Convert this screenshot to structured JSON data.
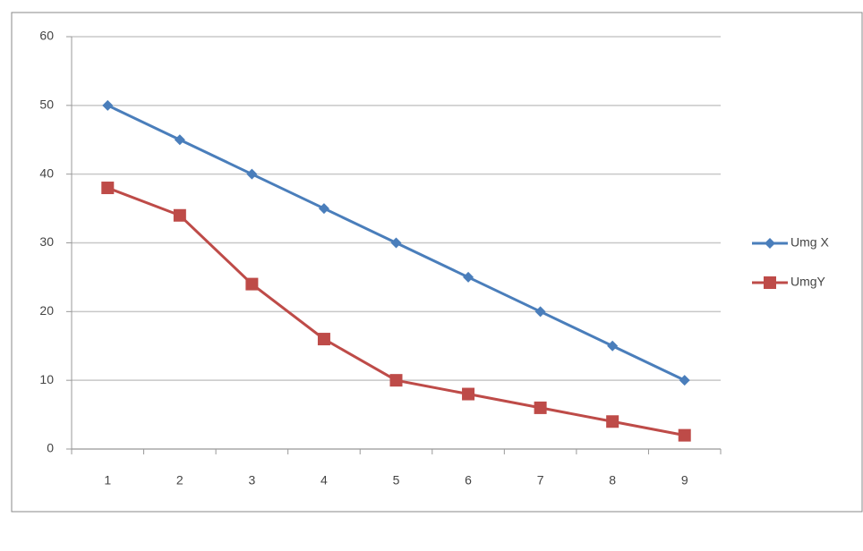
{
  "chart_data": {
    "type": "line",
    "categories": [
      "1",
      "2",
      "3",
      "4",
      "5",
      "6",
      "7",
      "8",
      "9"
    ],
    "series": [
      {
        "name": "Umg X",
        "color": "#4a7ebb",
        "marker": "diamond",
        "values": [
          50,
          45,
          40,
          35,
          30,
          25,
          20,
          15,
          10
        ]
      },
      {
        "name": "UmgY",
        "color": "#be4b48",
        "marker": "square",
        "values": [
          38,
          34,
          24,
          16,
          10,
          8,
          6,
          4,
          2
        ]
      }
    ],
    "ylim": [
      0,
      60
    ],
    "yticks": [
      0,
      10,
      20,
      30,
      40,
      50,
      60
    ],
    "grid": true,
    "legend": "right"
  }
}
